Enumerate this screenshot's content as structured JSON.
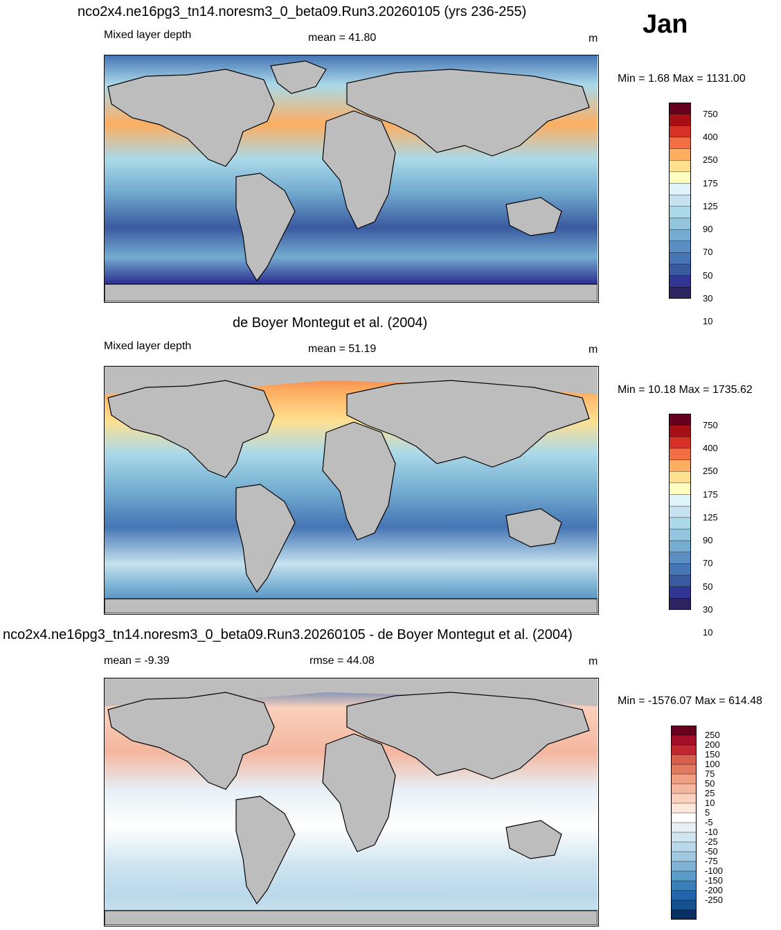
{
  "month": "Jan",
  "panels": [
    {
      "title": "nco2x4.ne16pg3_tn14.noresm3_0_beta09.Run3.20260105 (yrs 236-255)",
      "left_label": "Mixed layer depth",
      "center_label": "mean =  41.80",
      "units": "m",
      "minmax": "Min =   1.68 Max = 1131.00",
      "colorbar": {
        "labels": [
          "750",
          "400",
          "250",
          "175",
          "125",
          "90",
          "70",
          "50",
          "30",
          "10"
        ],
        "colors": [
          "#67001f",
          "#a50f15",
          "#d73027",
          "#f46d43",
          "#fdae61",
          "#fee090",
          "#ffffbf",
          "#e0f3f8",
          "#c6e2ee",
          "#abd9e9",
          "#92c5de",
          "#74add1",
          "#5b8fc4",
          "#4575b4",
          "#3a5aa0",
          "#313695",
          "#2b2461"
        ]
      }
    },
    {
      "title": "de Boyer Montegut et al. (2004)",
      "left_label": "Mixed layer depth",
      "center_label": "mean =  51.19",
      "units": "m",
      "minmax": "Min =  10.18 Max = 1735.62",
      "colorbar": {
        "labels": [
          "750",
          "400",
          "250",
          "175",
          "125",
          "90",
          "70",
          "50",
          "30",
          "10"
        ],
        "colors": [
          "#67001f",
          "#a50f15",
          "#d73027",
          "#f46d43",
          "#fdae61",
          "#fee090",
          "#ffffbf",
          "#e0f3f8",
          "#c6e2ee",
          "#abd9e9",
          "#92c5de",
          "#74add1",
          "#5b8fc4",
          "#4575b4",
          "#3a5aa0",
          "#313695",
          "#2b2461"
        ]
      }
    },
    {
      "title": "nco2x4.ne16pg3_tn14.noresm3_0_beta09.Run3.20260105 - de Boyer Montegut et al. (2004)",
      "left_label": "mean =  -9.39",
      "center_label": "rmse =  44.08",
      "units": "m",
      "minmax": "Min = -1576.07 Max = 614.48",
      "colorbar": {
        "labels": [
          "250",
          "200",
          "150",
          "100",
          "75",
          "50",
          "25",
          "10",
          "5",
          "-5",
          "-10",
          "-25",
          "-50",
          "-75",
          "-100",
          "-150",
          "-200",
          "-250"
        ],
        "colors": [
          "#67001f",
          "#a50f26",
          "#c2262e",
          "#d6604d",
          "#e07b62",
          "#f09f83",
          "#f4b69e",
          "#fbd0bd",
          "#fde6da",
          "#ffffff",
          "#e6f0f6",
          "#d1e5f0",
          "#b9d8ea",
          "#a0c8e0",
          "#7fb2d5",
          "#5b9bc9",
          "#3a7fb8",
          "#2166ac",
          "#14508e",
          "#053061"
        ]
      }
    }
  ]
}
